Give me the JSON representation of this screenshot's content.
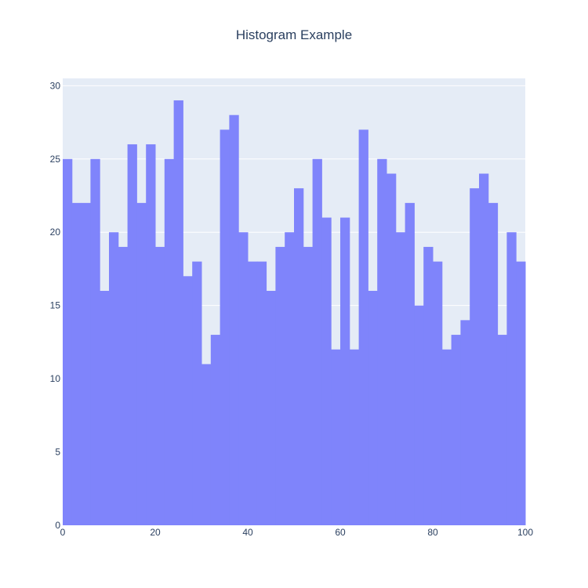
{
  "chart_data": {
    "type": "histogram",
    "title": "Histogram Example",
    "xlabel": "",
    "ylabel": "",
    "bin_width": 2,
    "xlim": [
      0,
      100
    ],
    "ylim": [
      0,
      30
    ],
    "x_ticks": [
      0,
      20,
      40,
      60,
      80,
      100
    ],
    "y_ticks": [
      0,
      5,
      10,
      15,
      20,
      25,
      30
    ],
    "bin_starts": [
      0,
      2,
      4,
      6,
      8,
      10,
      12,
      14,
      16,
      18,
      20,
      22,
      24,
      26,
      28,
      30,
      32,
      34,
      36,
      38,
      40,
      42,
      44,
      46,
      48,
      50,
      52,
      54,
      56,
      58,
      60,
      62,
      64,
      66,
      68,
      70,
      72,
      74,
      76,
      78,
      80,
      82,
      84,
      86,
      88,
      90,
      92,
      94,
      96,
      98
    ],
    "values": [
      25,
      22,
      22,
      25,
      16,
      20,
      19,
      26,
      22,
      26,
      19,
      25,
      29,
      17,
      18,
      11,
      13,
      27,
      28,
      20,
      18,
      18,
      16,
      19,
      20,
      23,
      19,
      25,
      21,
      12,
      21,
      12,
      27,
      16,
      25,
      24,
      20,
      22,
      15,
      19,
      18,
      12,
      13,
      14,
      23,
      24,
      22,
      13,
      20,
      18
    ],
    "grid": true,
    "colors": {
      "bar": "#7f84fb",
      "plot_bg": "#e5ecf6",
      "grid": "#ffffff",
      "text": "#2a3f5f"
    }
  }
}
